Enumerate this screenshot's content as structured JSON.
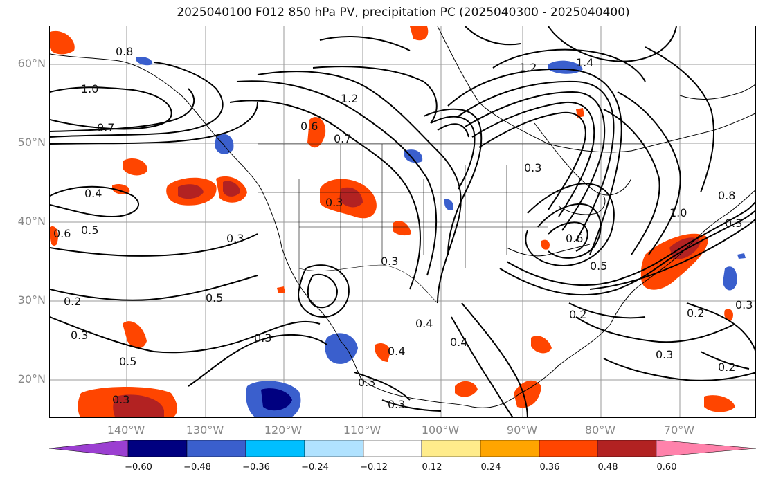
{
  "title": "2025040100 F012 850 hPa PV, precipitation PC (2025040300 - 2025040400)",
  "lat_labels": [
    "60°N",
    "50°N",
    "40°N",
    "30°N",
    "20°N"
  ],
  "lon_labels": [
    "140°W",
    "130°W",
    "120°W",
    "110°W",
    "100°W",
    "90°W",
    "80°W",
    "70°W"
  ],
  "contour_labels": [
    "0.8",
    "1.0",
    "0.7",
    "0.4",
    "0.6",
    "0.5",
    "0.3",
    "0.2",
    "0.3",
    "0.5",
    "0.3",
    "0.5",
    "0.3",
    "0.6",
    "0.7",
    "1.2",
    "1.2",
    "1.4",
    "0.3",
    "0.3",
    "0.4",
    "0.4",
    "0.3",
    "0.3",
    "0.4",
    "0.2",
    "0.5",
    "0.6",
    "1.0",
    "0.8",
    "0.3",
    "0.2",
    "0.3",
    "0.3",
    "0.2",
    "0.3"
  ],
  "colorbar": {
    "ticks": [
      "−0.60",
      "−0.48",
      "−0.36",
      "−0.24",
      "−0.12",
      "0.12",
      "0.24",
      "0.36",
      "0.48",
      "0.60"
    ],
    "colors": [
      "#9b3fd1",
      "#000080",
      "#3a5fcd",
      "#00bfff",
      "#b0e2ff",
      "#ffffff",
      "#ffec8b",
      "#ffa500",
      "#ff4500",
      "#b22222",
      "#ff82ab"
    ]
  }
}
